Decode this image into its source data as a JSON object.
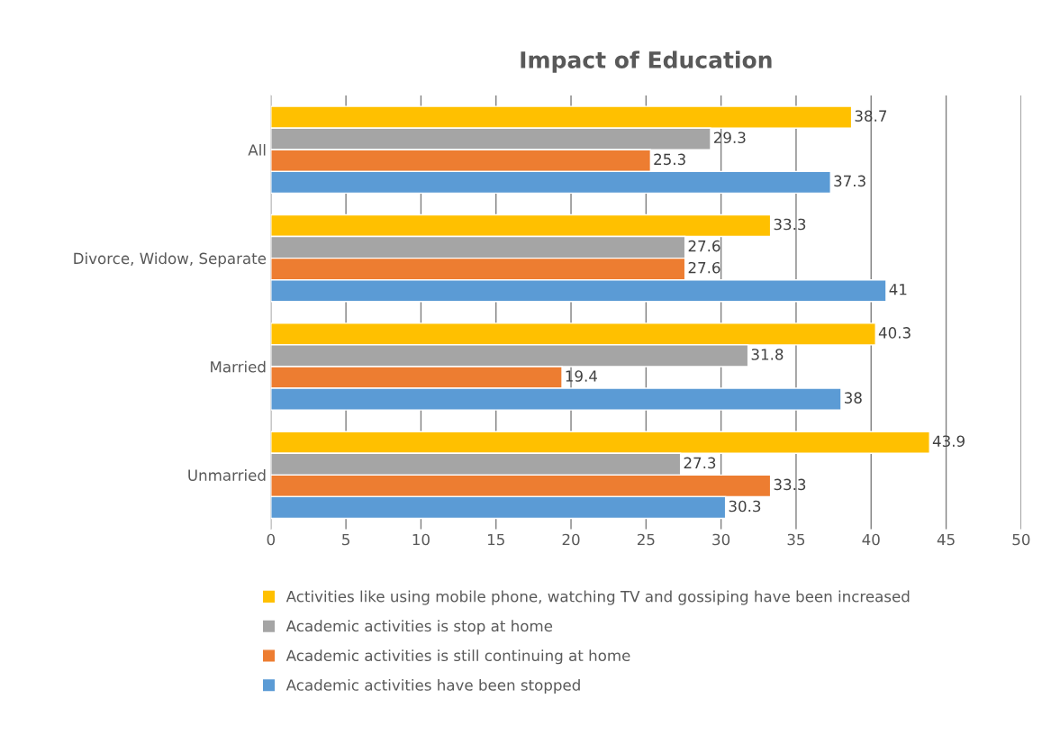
{
  "chart_data": {
    "type": "bar",
    "orientation": "horizontal",
    "title": "Impact of Education",
    "categories": [
      "All",
      "Divorce, Widow, Separate",
      "Married",
      "Unmarried"
    ],
    "series": [
      {
        "name": "Activities like using mobile phone, watching TV and gossiping have been increased",
        "color": "#ffc000",
        "values": [
          38.7,
          33.3,
          40.3,
          43.9
        ]
      },
      {
        "name": "Academic activities is stop at home",
        "color": "#a5a5a5",
        "values": [
          29.3,
          27.6,
          31.8,
          27.3
        ]
      },
      {
        "name": "Academic activities is still continuing at home",
        "color": "#ed7d31",
        "values": [
          25.3,
          27.6,
          19.4,
          33.3
        ]
      },
      {
        "name": "Academic activities have been stopped",
        "color": "#5b9bd5",
        "values": [
          37.3,
          41,
          38,
          30.3
        ]
      }
    ],
    "xlim": [
      0,
      50
    ],
    "xticks": [
      0,
      5,
      10,
      15,
      20,
      25,
      30,
      35,
      40,
      45,
      50
    ],
    "grid": "x",
    "data_labels": true,
    "legend": "bottom"
  }
}
